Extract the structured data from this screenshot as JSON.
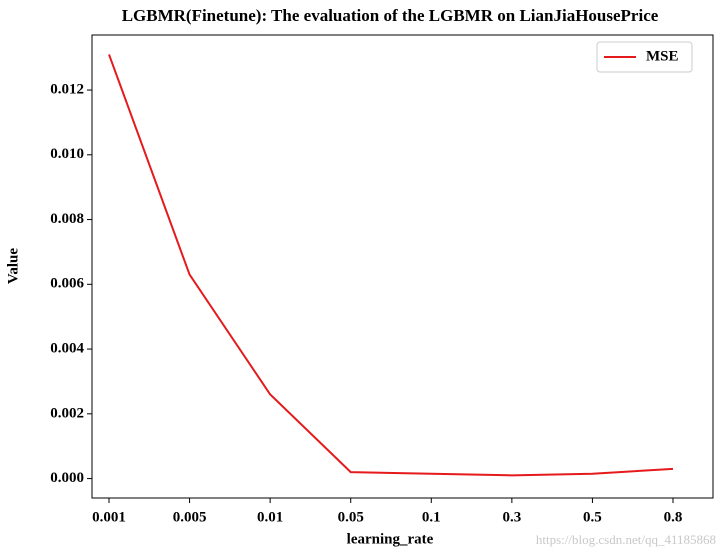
{
  "chart_data": {
    "type": "line",
    "title": "LGBMR(Finetune): The evaluation of the LGBMR on LianJiaHousePrice",
    "x_label": "learning_rate",
    "y_label": "Value",
    "categories": [
      "0.001",
      "0.005",
      "0.01",
      "0.05",
      "0.1",
      "0.3",
      "0.5",
      "0.8"
    ],
    "series": [
      {
        "name": "MSE",
        "color": "#e41a1c",
        "values": [
          0.0131,
          0.0063,
          0.0026,
          0.0002,
          0.00015,
          0.0001,
          0.00015,
          0.0003
        ]
      }
    ],
    "ylim": [
      -0.0006,
      0.0137
    ],
    "yticks": [
      {
        "value": 0,
        "label": "0.000"
      },
      0.002,
      0.004,
      0.006,
      0.008,
      {
        "value": 0.01,
        "label": "0.010"
      },
      0.012
    ],
    "legend": "upper right",
    "watermark": "https://blog.csdn.net/qq_41185868"
  }
}
